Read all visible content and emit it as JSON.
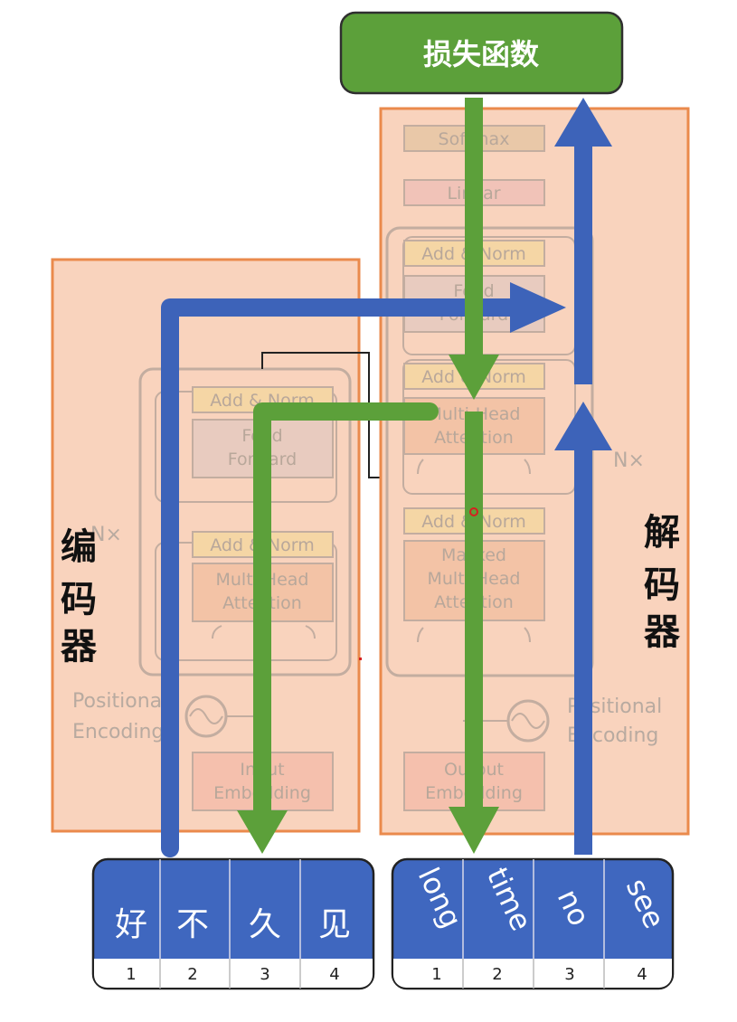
{
  "loss": {
    "label": "损失函数"
  },
  "encoder": {
    "side_label": [
      "编",
      "码",
      "器"
    ],
    "repeat": "N×",
    "blocks": {
      "add_norm_top": "Add & Norm",
      "feed_forward": [
        "Feed",
        "Forward"
      ],
      "add_norm_bottom": "Add & Norm",
      "attention": [
        "Multi-Head",
        "Attention"
      ],
      "positional": [
        "Positional",
        "Encoding"
      ],
      "embedding": [
        "Input",
        "Embedding"
      ]
    },
    "tokens": [
      {
        "text": "好",
        "index": "1"
      },
      {
        "text": "不",
        "index": "2"
      },
      {
        "text": "久",
        "index": "3"
      },
      {
        "text": "见",
        "index": "4"
      }
    ]
  },
  "decoder": {
    "side_label": [
      "解",
      "码",
      "器"
    ],
    "repeat": "N×",
    "blocks": {
      "softmax": "Softmax",
      "linear": "Linear",
      "add_norm_1": "Add & Norm",
      "feed_forward": [
        "Feed",
        "Forward"
      ],
      "add_norm_2": "Add & Norm",
      "cross_attention": [
        "Multi-Head",
        "Attention"
      ],
      "add_norm_3": "Add & Norm",
      "masked_attention": [
        "Masked",
        "Multi-Head",
        "Attention"
      ],
      "positional": [
        "Positional",
        "Encoding"
      ],
      "embedding": [
        "Output",
        "Embedding"
      ]
    },
    "tokens": [
      {
        "text": "long",
        "index": "1"
      },
      {
        "text": "time",
        "index": "2"
      },
      {
        "text": "no",
        "index": "3"
      },
      {
        "text": "see",
        "index": "4"
      }
    ]
  },
  "colors": {
    "panel": "#f9d3bd",
    "panel_border": "#ea8a4c",
    "green": "#5ca03a",
    "blue": "#3d63b9",
    "token_box": "#3f67bf"
  }
}
